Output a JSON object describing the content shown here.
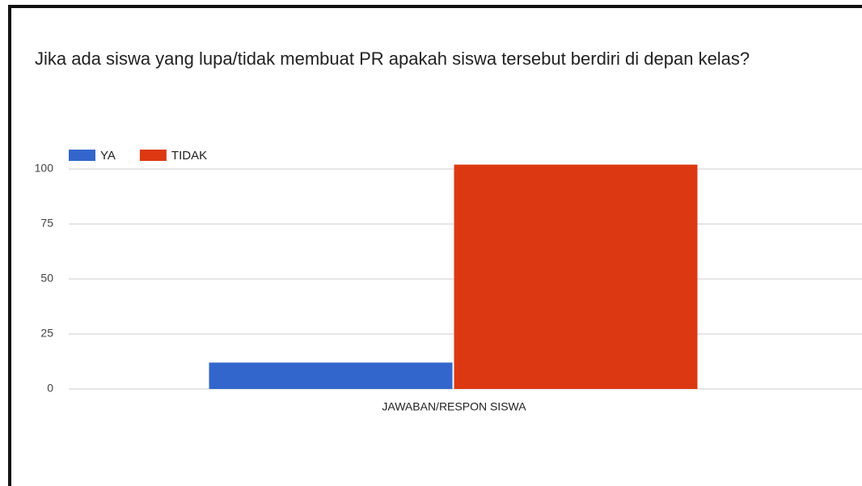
{
  "chart_data": {
    "type": "bar",
    "title": "Jika ada siswa yang lupa/tidak membuat PR apakah siswa tersebut berdiri di depan kelas?",
    "categories": [
      "JAWABAN/RESPON SISWA"
    ],
    "series": [
      {
        "name": "YA",
        "color": "#3366cc",
        "values": [
          12
        ]
      },
      {
        "name": "TIDAK",
        "color": "#dc3912",
        "values": [
          102
        ]
      }
    ],
    "ylim": [
      0,
      105
    ],
    "yticks": [
      0,
      25,
      50,
      75,
      100
    ],
    "grid": true,
    "legend": "top"
  }
}
